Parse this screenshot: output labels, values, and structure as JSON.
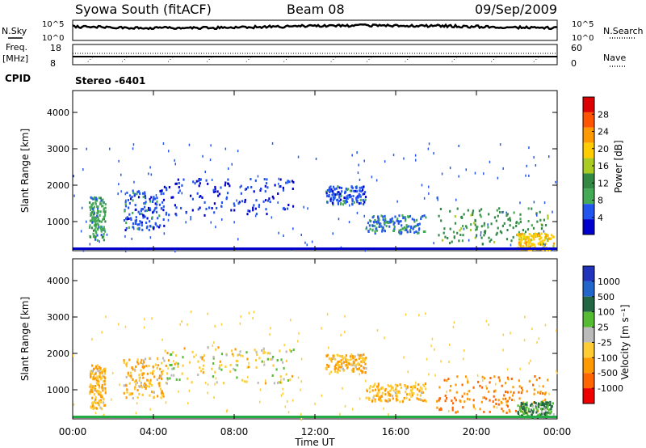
{
  "header": {
    "station": "Syowa South (fitACF)",
    "beam": "Beam 08",
    "date": "09/Sep/2009"
  },
  "sky_panel": {
    "left_label": "N.Sky",
    "right_label": "N.Search",
    "ticks_left": [
      "10^5",
      "10^0"
    ],
    "ticks_right": [
      "10^5",
      "10^0"
    ]
  },
  "freq_panel": {
    "left_label_1": "Freq.",
    "left_label_2": "[MHz]",
    "right_label": "Nave",
    "ticks_left": [
      "18",
      "8"
    ],
    "ticks_right": [
      "60",
      "0"
    ]
  },
  "cpid": {
    "label": "CPID",
    "value": "Stereo -6401"
  },
  "colors": {
    "power_scale": [
      "#0000cc",
      "#2255ee",
      "#44aa55",
      "#338844",
      "#aacc22",
      "#ffcc00",
      "#ff9900",
      "#ff5500",
      "#dd0000"
    ],
    "velocity_scale": [
      "#2233bb",
      "#2266cc",
      "#226644",
      "#55bb33",
      "#bbbbbb",
      "#ffcc33",
      "#ff9900",
      "#ff6600",
      "#ee0000"
    ]
  },
  "chart_data": [
    {
      "type": "heatmap",
      "name": "power",
      "ylabel": "Slant Range [km]",
      "yticks": [
        "1000",
        "2000",
        "3000",
        "4000"
      ],
      "ylim": [
        200,
        4600
      ],
      "colorbar_label": "Power [dB]",
      "colorbar_ticks": [
        "4",
        "8",
        "12",
        "16",
        "20",
        "24",
        "28"
      ],
      "colorbar_range": [
        0,
        32
      ],
      "echo_regions": [
        {
          "t0": 0.8,
          "t1": 1.6,
          "r0": 500,
          "r1": 1700,
          "level": 10
        },
        {
          "t0": 2.5,
          "t1": 4.5,
          "r0": 800,
          "r1": 1900,
          "level": 6
        },
        {
          "t0": 4.5,
          "t1": 11.0,
          "r0": 1200,
          "r1": 2200,
          "level": 4
        },
        {
          "t0": 12.5,
          "t1": 14.5,
          "r0": 1500,
          "r1": 2000,
          "level": 6
        },
        {
          "t0": 14.5,
          "t1": 17.5,
          "r0": 700,
          "r1": 1200,
          "level": 8
        },
        {
          "t0": 18.0,
          "t1": 23.5,
          "r0": 400,
          "r1": 1400,
          "level": 14
        },
        {
          "t0": 22.0,
          "t1": 23.8,
          "r0": 250,
          "r1": 700,
          "level": 22
        }
      ]
    },
    {
      "type": "heatmap",
      "name": "velocity",
      "ylabel": "Slant Range [km]",
      "yticks": [
        "1000",
        "2000",
        "3000",
        "4000"
      ],
      "ylim": [
        200,
        4600
      ],
      "colorbar_label": "Velocity [m s⁻¹]",
      "colorbar_ticks": [
        "1000",
        "500",
        "100",
        "25",
        "-25",
        "-100",
        "-500",
        "-1000"
      ],
      "echo_regions": [
        {
          "t0": 0.8,
          "t1": 1.6,
          "r0": 500,
          "r1": 1700,
          "level": -100
        },
        {
          "t0": 2.5,
          "t1": 4.5,
          "r0": 800,
          "r1": 1900,
          "level": -100
        },
        {
          "t0": 4.5,
          "t1": 11.0,
          "r0": 1200,
          "r1": 2200,
          "level": -25
        },
        {
          "t0": 12.5,
          "t1": 14.5,
          "r0": 1500,
          "r1": 2000,
          "level": -100
        },
        {
          "t0": 14.5,
          "t1": 17.5,
          "r0": 700,
          "r1": 1200,
          "level": -100
        },
        {
          "t0": 18.0,
          "t1": 23.5,
          "r0": 400,
          "r1": 1400,
          "level": -500
        },
        {
          "t0": 22.0,
          "t1": 23.8,
          "r0": 250,
          "r1": 700,
          "level": 100
        }
      ]
    }
  ],
  "x_axis": {
    "ticks": [
      "00:00",
      "04:00",
      "08:00",
      "12:00",
      "16:00",
      "20:00",
      "00:00"
    ],
    "xlabel": "Time UT",
    "range_hours": [
      0,
      24
    ]
  }
}
